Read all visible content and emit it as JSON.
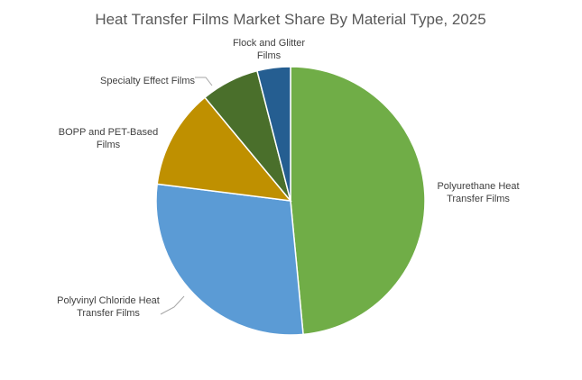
{
  "chart_data": {
    "type": "pie",
    "title": "Heat Transfer Films Market Share By Material Type, 2025",
    "legend": "none",
    "slices": [
      {
        "name": "Polyurethane Heat Transfer Films",
        "label_lines": [
          "Polyurethane Heat",
          "Transfer Films"
        ],
        "value": 48.5,
        "color": "#70ad47"
      },
      {
        "name": "Polyvinyl Chloride Heat Transfer Films",
        "label_lines": [
          "Polyvinyl Chloride Heat",
          "Transfer Films"
        ],
        "value": 28.5,
        "color": "#5b9bd5"
      },
      {
        "name": "BOPP and PET-Based Films",
        "label_lines": [
          "BOPP and PET-Based",
          "Films"
        ],
        "value": 12,
        "color": "#bf9000"
      },
      {
        "name": "Specialty Effect Films",
        "label_lines": [
          "Specialty Effect Films"
        ],
        "value": 7,
        "color": "#4a6f2b"
      },
      {
        "name": "Flock and Glitter Films",
        "label_lines": [
          "Flock and Glitter",
          "Films"
        ],
        "value": 4,
        "color": "#255e91"
      }
    ]
  }
}
